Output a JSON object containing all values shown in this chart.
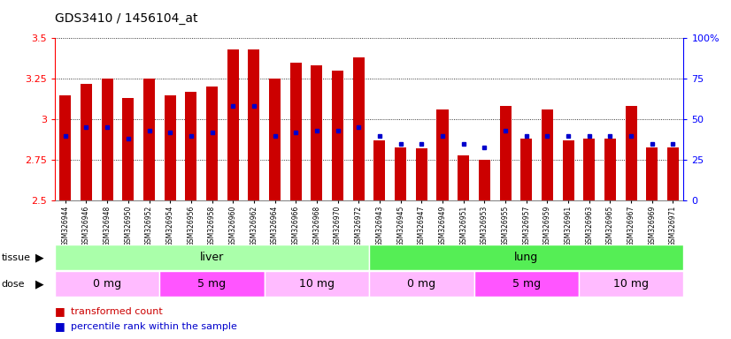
{
  "title": "GDS3410 / 1456104_at",
  "samples": [
    "GSM326944",
    "GSM326946",
    "GSM326948",
    "GSM326950",
    "GSM326952",
    "GSM326954",
    "GSM326956",
    "GSM326958",
    "GSM326960",
    "GSM326962",
    "GSM326964",
    "GSM326966",
    "GSM326968",
    "GSM326970",
    "GSM326972",
    "GSM326943",
    "GSM326945",
    "GSM326947",
    "GSM326949",
    "GSM326951",
    "GSM326953",
    "GSM326955",
    "GSM326957",
    "GSM326959",
    "GSM326961",
    "GSM326963",
    "GSM326965",
    "GSM326967",
    "GSM326969",
    "GSM326971"
  ],
  "transformed_count": [
    3.15,
    3.22,
    3.25,
    3.13,
    3.25,
    3.15,
    3.17,
    3.2,
    3.43,
    3.43,
    3.25,
    3.35,
    3.33,
    3.3,
    3.38,
    2.87,
    2.83,
    2.82,
    3.06,
    2.78,
    2.75,
    3.08,
    2.88,
    3.06,
    2.87,
    2.88,
    2.88,
    3.08,
    2.83,
    2.83
  ],
  "percentile_rank_pct": [
    40,
    45,
    45,
    38,
    43,
    42,
    40,
    42,
    58,
    58,
    40,
    42,
    43,
    43,
    45,
    40,
    35,
    35,
    40,
    35,
    33,
    43,
    40,
    40,
    40,
    40,
    40,
    40,
    35,
    35
  ],
  "ymin": 2.5,
  "ymax": 3.5,
  "yticks": [
    2.5,
    2.75,
    3.0,
    3.25,
    3.5
  ],
  "ytick_labels": [
    "2.5",
    "2.75",
    "3",
    "3.25",
    "3.5"
  ],
  "right_yticks_pct": [
    0,
    25,
    50,
    75,
    100
  ],
  "right_ytick_labels": [
    "0",
    "25",
    "50",
    "75",
    "100%"
  ],
  "bar_color": "#cc0000",
  "percentile_color": "#0000cc",
  "tissue_groups": [
    {
      "label": "liver",
      "start": 0,
      "end": 14,
      "color": "#aaffaa"
    },
    {
      "label": "lung",
      "start": 15,
      "end": 29,
      "color": "#55ee55"
    }
  ],
  "dose_groups": [
    {
      "label": "0 mg",
      "start": 0,
      "end": 4,
      "color": "#ffbbff"
    },
    {
      "label": "5 mg",
      "start": 5,
      "end": 9,
      "color": "#ff55ff"
    },
    {
      "label": "10 mg",
      "start": 10,
      "end": 14,
      "color": "#ffbbff"
    },
    {
      "label": "0 mg",
      "start": 15,
      "end": 19,
      "color": "#ffbbff"
    },
    {
      "label": "5 mg",
      "start": 20,
      "end": 24,
      "color": "#ff55ff"
    },
    {
      "label": "10 mg",
      "start": 25,
      "end": 29,
      "color": "#ffbbff"
    }
  ],
  "xlabel_bg_color": "#cccccc",
  "plot_bg_color": "#ffffff",
  "grid_color": "#000000"
}
